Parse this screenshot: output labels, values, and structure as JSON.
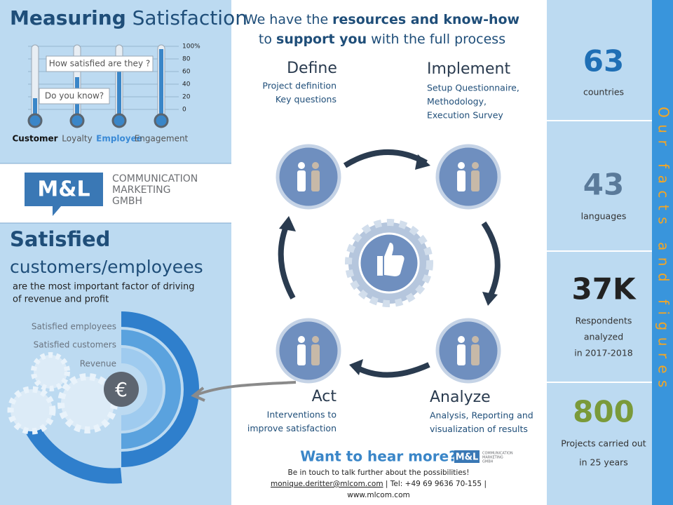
{
  "left": {
    "title_bold": "Measuring",
    "title_rest": "Satisfaction",
    "scale": [
      "100%",
      "80",
      "60",
      "40",
      "20",
      "0"
    ],
    "bubbles": [
      "How satisfied are they ?",
      "Do you know?"
    ],
    "thermometers": [
      "Customer",
      "Loyalty",
      "Employee",
      "Engagement"
    ]
  },
  "logo": {
    "mark": "M&L",
    "lines": [
      "COMMUNICATION",
      "MARKETING",
      "GMBH"
    ]
  },
  "satisfied": {
    "title": "Satisfied",
    "subtitle": "customers/employees",
    "text": [
      "are the most important factor of driving",
      "of revenue and profit"
    ],
    "arcs": [
      "Satisfied employees",
      "Satisfied customers",
      "Revenue"
    ],
    "symbol": "€"
  },
  "header": {
    "line1": [
      "We have the ",
      "resources and know-how"
    ],
    "line2": [
      "to ",
      "support you",
      " with the full process"
    ]
  },
  "steps": [
    {
      "title": "Define",
      "lines": [
        "Project definition",
        "Key questions"
      ]
    },
    {
      "title": "Implement",
      "lines": [
        "Setup Questionnaire,",
        "Methodology,",
        "Execution  Survey"
      ]
    },
    {
      "title": "Analyze",
      "lines": [
        "Analysis, Reporting and",
        "visualization of results"
      ]
    },
    {
      "title": "Act",
      "lines": [
        "Interventions to",
        "improve satisfaction"
      ]
    }
  ],
  "footer": {
    "title": "Want to hear more?",
    "logo_mark": "M&L",
    "logo_lines": [
      "COMMUNICATION",
      "MARKETING",
      "GMBH"
    ],
    "line1": "Be in touch to talk further about the possibilities!",
    "email": "monique.deritter@mlcom.com",
    "phone": " | Tel: +49 69 9636 70-155 |",
    "web": "www.mlcom.com"
  },
  "facts": {
    "side_title": "Our facts and figures",
    "items": [
      {
        "number": "63",
        "lines": [
          "countries"
        ]
      },
      {
        "number": "43",
        "lines": [
          "languages"
        ]
      },
      {
        "number": "37K",
        "lines": [
          "Respondents",
          "analyzed",
          "in 2017-2018"
        ]
      },
      {
        "number": "800",
        "lines": [
          "Projects carried out",
          "in 25 years"
        ]
      }
    ]
  }
}
